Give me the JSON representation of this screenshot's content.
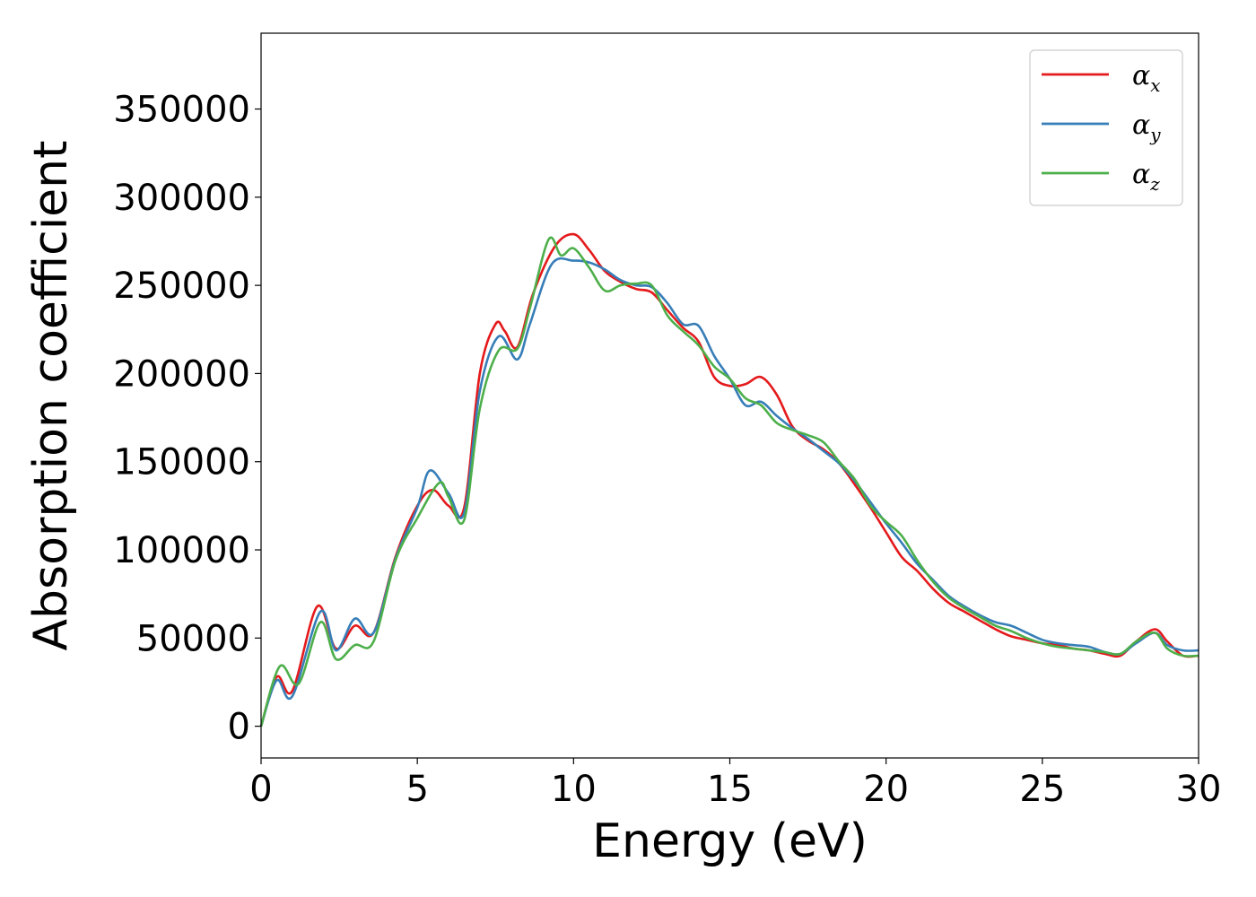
{
  "chart_data": {
    "type": "line",
    "title": "",
    "xlabel": "Energy (eV)",
    "ylabel": "Absorption coefficient",
    "xlim": [
      0,
      30
    ],
    "ylim": [
      -18000,
      393000
    ],
    "xticks": [
      0,
      5,
      10,
      15,
      20,
      25,
      30
    ],
    "yticks": [
      0,
      50000,
      100000,
      150000,
      200000,
      250000,
      300000,
      350000
    ],
    "grid": false,
    "legend_position": "top-right",
    "series": [
      {
        "name": "α",
        "subscript": "x",
        "color": "#e41a1c",
        "x": [
          0,
          0.5,
          1,
          1.8,
          2.4,
          3,
          3.6,
          4.3,
          5,
          5.5,
          6,
          6.5,
          7,
          7.5,
          7.8,
          8.2,
          8.7,
          9.4,
          10,
          10.5,
          11,
          11.5,
          12,
          12.5,
          13,
          13.5,
          14,
          14.5,
          15,
          15.5,
          16,
          16.5,
          17,
          17.5,
          18,
          18.5,
          19,
          19.5,
          20,
          20.5,
          21,
          21.5,
          22,
          22.5,
          23,
          23.5,
          24,
          24.5,
          25,
          25.5,
          26,
          26.5,
          27,
          27.5,
          28,
          28.6,
          29,
          29.5,
          30
        ],
        "values": [
          0,
          28000,
          20000,
          68000,
          44000,
          57000,
          53000,
          96000,
          125000,
          134000,
          125000,
          124000,
          200000,
          228000,
          224000,
          215000,
          245000,
          272000,
          279000,
          270000,
          258000,
          252000,
          248000,
          246000,
          236000,
          226000,
          218000,
          198000,
          193000,
          194000,
          198000,
          188000,
          170000,
          162000,
          157000,
          149000,
          137000,
          124000,
          110000,
          96000,
          88000,
          78000,
          70000,
          65000,
          60000,
          55000,
          51000,
          49000,
          47000,
          46000,
          44000,
          43000,
          41000,
          40000,
          48000,
          55000,
          48000,
          40000,
          40000
        ]
      },
      {
        "name": "α",
        "subscript": "y",
        "color": "#377eb8",
        "x": [
          0,
          0.5,
          1,
          1.9,
          2.4,
          3,
          3.6,
          4.3,
          5,
          5.4,
          6,
          6.5,
          7,
          7.6,
          8.2,
          8.6,
          9.3,
          10,
          10.5,
          11,
          11.5,
          12,
          12.5,
          13,
          13.5,
          14,
          14.5,
          15,
          15.5,
          16,
          16.5,
          17,
          17.5,
          18,
          18.5,
          19,
          19.5,
          20,
          20.5,
          21,
          21.5,
          22,
          22.5,
          23,
          23.5,
          24,
          24.5,
          25,
          25.5,
          26,
          26.5,
          27,
          27.5,
          28,
          28.6,
          29,
          29.5,
          30
        ],
        "values": [
          0,
          26000,
          17000,
          65000,
          43000,
          61000,
          53000,
          95000,
          124000,
          145000,
          132000,
          121000,
          190000,
          221000,
          208000,
          228000,
          262000,
          264000,
          263000,
          259000,
          253000,
          250000,
          249000,
          240000,
          228000,
          227000,
          210000,
          197000,
          182000,
          184000,
          176000,
          169000,
          163000,
          156000,
          149000,
          139000,
          127000,
          115000,
          104000,
          92000,
          83000,
          74000,
          68000,
          63000,
          59000,
          57000,
          53000,
          49000,
          47000,
          46000,
          45000,
          42000,
          41000,
          47000,
          53000,
          46000,
          43000,
          43000
        ]
      },
      {
        "name": "α",
        "subscript": "z",
        "color": "#4daf4a",
        "x": [
          0,
          0.6,
          1.2,
          1.9,
          2.4,
          3,
          3.6,
          4.3,
          5,
          5.7,
          6,
          6.5,
          7,
          7.6,
          8.2,
          8.6,
          9.2,
          9.6,
          10,
          10.5,
          11,
          11.5,
          12,
          12.5,
          13,
          13.5,
          14,
          14.5,
          15,
          15.5,
          16,
          16.5,
          17,
          17.5,
          18,
          18.5,
          19,
          19.5,
          20,
          20.5,
          21,
          21.5,
          22,
          22.5,
          23,
          23.5,
          24,
          24.5,
          25,
          25.5,
          26,
          26.5,
          27,
          27.5,
          28,
          28.6,
          29,
          29.5,
          30
        ],
        "values": [
          0,
          34000,
          24000,
          59000,
          38000,
          46000,
          48000,
          94000,
          118000,
          138000,
          130000,
          117000,
          180000,
          213000,
          214000,
          237000,
          276000,
          267000,
          271000,
          260000,
          247000,
          250000,
          251000,
          250000,
          233000,
          224000,
          216000,
          204000,
          197000,
          186000,
          182000,
          172000,
          168000,
          165000,
          161000,
          150000,
          140000,
          125000,
          116000,
          108000,
          94000,
          82000,
          73000,
          67000,
          62000,
          57000,
          54000,
          50000,
          47000,
          45000,
          44000,
          43000,
          42000,
          41000,
          48000,
          53000,
          44000,
          40000,
          40000
        ]
      }
    ]
  }
}
